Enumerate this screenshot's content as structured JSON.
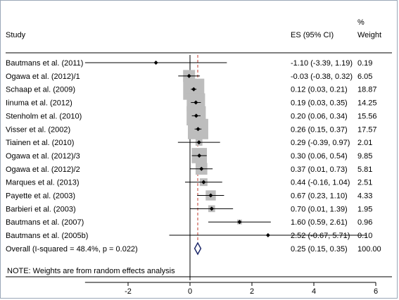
{
  "chart_data": {
    "type": "forest",
    "headers": {
      "study": "Study",
      "es": "ES (95% CI)",
      "weight_pct": "%",
      "weight": "Weight"
    },
    "studies": [
      {
        "name": "Bautmans et al. (2011)",
        "es": -1.1,
        "lo": -3.39,
        "hi": 1.19,
        "weight": 0.19,
        "es_text": "-1.10 (-3.39, 1.19)",
        "weight_text": "0.19"
      },
      {
        "name": "Ogawa et al. (2012)/1",
        "es": -0.03,
        "lo": -0.38,
        "hi": 0.32,
        "weight": 6.05,
        "es_text": "-0.03 (-0.38, 0.32)",
        "weight_text": "6.05"
      },
      {
        "name": "Schaap et al. (2009)",
        "es": 0.12,
        "lo": 0.03,
        "hi": 0.21,
        "weight": 18.87,
        "es_text": "0.12 (0.03, 0.21)",
        "weight_text": "18.87"
      },
      {
        "name": "Iinuma et al. (2012)",
        "es": 0.19,
        "lo": 0.03,
        "hi": 0.35,
        "weight": 14.25,
        "es_text": "0.19 (0.03, 0.35)",
        "weight_text": "14.25"
      },
      {
        "name": "Stenholm et al. (2010)",
        "es": 0.2,
        "lo": 0.06,
        "hi": 0.34,
        "weight": 15.56,
        "es_text": "0.20 (0.06, 0.34)",
        "weight_text": "15.56"
      },
      {
        "name": "Visser et al. (2002)",
        "es": 0.26,
        "lo": 0.15,
        "hi": 0.37,
        "weight": 17.57,
        "es_text": "0.26 (0.15, 0.37)",
        "weight_text": "17.57"
      },
      {
        "name": "Tiainen et al. (2010)",
        "es": 0.29,
        "lo": -0.39,
        "hi": 0.97,
        "weight": 2.01,
        "es_text": "0.29 (-0.39, 0.97)",
        "weight_text": "2.01"
      },
      {
        "name": "Ogawa et al. (2012)/3",
        "es": 0.3,
        "lo": 0.06,
        "hi": 0.54,
        "weight": 9.85,
        "es_text": "0.30 (0.06, 0.54)",
        "weight_text": "9.85"
      },
      {
        "name": "Ogawa et al. (2012)/2",
        "es": 0.37,
        "lo": 0.01,
        "hi": 0.73,
        "weight": 5.81,
        "es_text": "0.37 (0.01, 0.73)",
        "weight_text": "5.81"
      },
      {
        "name": "Marques et al. (2013)",
        "es": 0.44,
        "lo": -0.16,
        "hi": 1.04,
        "weight": 2.51,
        "es_text": "0.44 (-0.16, 1.04)",
        "weight_text": "2.51"
      },
      {
        "name": "Payette et al. (2003)",
        "es": 0.67,
        "lo": 0.23,
        "hi": 1.1,
        "weight": 4.33,
        "es_text": "0.67 (0.23, 1.10)",
        "weight_text": "4.33"
      },
      {
        "name": "Barbieri et al. (2003)",
        "es": 0.7,
        "lo": 0.01,
        "hi": 1.39,
        "weight": 1.95,
        "es_text": "0.70 (0.01, 1.39)",
        "weight_text": "1.95"
      },
      {
        "name": "Bautmans et al. (2007)",
        "es": 1.6,
        "lo": 0.59,
        "hi": 2.61,
        "weight": 0.96,
        "es_text": "1.60 (0.59, 2.61)",
        "weight_text": "0.96"
      },
      {
        "name": "Bautmans et al. (2005b)",
        "es": 2.52,
        "lo": -0.67,
        "hi": 5.71,
        "weight": 0.1,
        "es_text": "2.52 (-0.67, 5.71)",
        "weight_text": "0.10"
      }
    ],
    "overall": {
      "name": "Overall  (I-squared = 48.4%, p = 0.022)",
      "es": 0.25,
      "lo": 0.15,
      "hi": 0.35,
      "weight": 100.0,
      "es_text": "0.25 (0.15, 0.35)",
      "weight_text": "100.00"
    },
    "note": "NOTE: Weights are from random effects analysis",
    "x_ticks": [
      -2,
      0,
      2,
      4,
      6
    ],
    "x_tick_labels": [
      "-2",
      "0",
      "2",
      "4",
      "6"
    ],
    "xlim": [
      -3.39,
      6.0
    ],
    "null_line": 0,
    "colors": {
      "weight_box": "#bdbdbd",
      "overall_diamond": "#1f2a6b",
      "pooled_line": "#c0392b",
      "line": "#000000"
    }
  }
}
